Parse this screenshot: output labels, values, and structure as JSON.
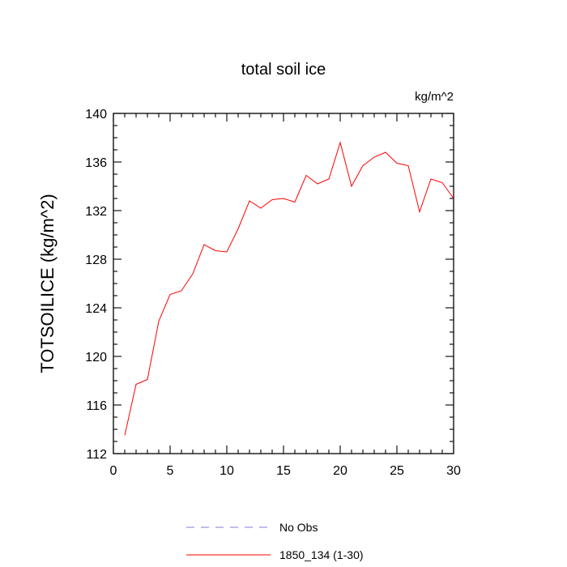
{
  "chart_data": {
    "type": "line",
    "title": "total soil ice",
    "units": "kg/m^2",
    "ylabel": "TOTSOILICE  (kg/m^2)",
    "xlabel": "",
    "xlim": [
      0,
      30
    ],
    "ylim": [
      112,
      140
    ],
    "x_ticks": [
      0,
      5,
      10,
      15,
      20,
      25,
      30
    ],
    "y_ticks": [
      112,
      116,
      120,
      124,
      128,
      132,
      136,
      140
    ],
    "x_minor_step": 1,
    "y_minor_step": 1,
    "grid": false,
    "legend_position": "bottom",
    "series": [
      {
        "name": "No Obs",
        "color": "#7b7bd9",
        "dash": "dashed",
        "x": [],
        "values": []
      },
      {
        "name": "1850_134 (1-30)",
        "color": "#ff0000",
        "dash": "solid",
        "x": [
          1,
          2,
          3,
          4,
          5,
          6,
          7,
          8,
          9,
          10,
          11,
          12,
          13,
          14,
          15,
          16,
          17,
          18,
          19,
          20,
          21,
          22,
          23,
          24,
          25,
          26,
          27,
          28,
          29,
          30
        ],
        "values": [
          113.5,
          117.7,
          118.1,
          122.9,
          125.1,
          125.4,
          126.8,
          129.2,
          128.7,
          128.6,
          130.5,
          132.8,
          132.2,
          132.9,
          133.0,
          132.7,
          134.9,
          134.2,
          134.6,
          137.6,
          134.0,
          135.7,
          136.4,
          136.8,
          135.9,
          135.7,
          131.9,
          134.6,
          134.3,
          133.0
        ]
      }
    ]
  }
}
